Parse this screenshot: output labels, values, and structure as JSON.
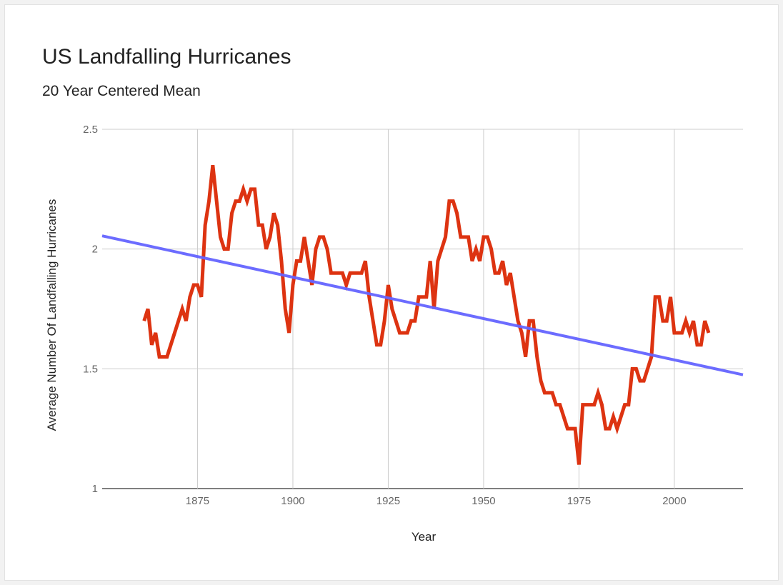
{
  "chart_data": {
    "type": "line",
    "title": "US Landfalling Hurricanes",
    "subtitle": "20 Year Centered Mean",
    "xlabel": "Year",
    "ylabel": "Average Number Of Landfalling Hurricanes",
    "xlim": [
      1850,
      2018
    ],
    "ylim": [
      1,
      2.5
    ],
    "x_ticks": [
      1875,
      1900,
      1925,
      1950,
      1975,
      2000
    ],
    "y_ticks": [
      1,
      1.5,
      2,
      2.5
    ],
    "x_tick_labels": [
      "1875",
      "1900",
      "1925",
      "1950",
      "1975",
      "2000"
    ],
    "y_tick_labels": [
      "1",
      "1.5",
      "2",
      "2.5"
    ],
    "grid": true,
    "legend": "none",
    "series": [
      {
        "color": "#dd3311",
        "points": [
          [
            1861,
            1.7
          ],
          [
            1862,
            1.75
          ],
          [
            1863,
            1.6
          ],
          [
            1864,
            1.65
          ],
          [
            1865,
            1.55
          ],
          [
            1866,
            1.55
          ],
          [
            1867,
            1.55
          ],
          [
            1868,
            1.6
          ],
          [
            1869,
            1.65
          ],
          [
            1870,
            1.7
          ],
          [
            1871,
            1.75
          ],
          [
            1872,
            1.7
          ],
          [
            1873,
            1.8
          ],
          [
            1874,
            1.85
          ],
          [
            1875,
            1.85
          ],
          [
            1876,
            1.8
          ],
          [
            1877,
            2.1
          ],
          [
            1878,
            2.2
          ],
          [
            1879,
            2.35
          ],
          [
            1880,
            2.2
          ],
          [
            1881,
            2.05
          ],
          [
            1882,
            2.0
          ],
          [
            1883,
            2.0
          ],
          [
            1884,
            2.15
          ],
          [
            1885,
            2.2
          ],
          [
            1886,
            2.2
          ],
          [
            1887,
            2.25
          ],
          [
            1888,
            2.2
          ],
          [
            1889,
            2.25
          ],
          [
            1890,
            2.25
          ],
          [
            1891,
            2.1
          ],
          [
            1892,
            2.1
          ],
          [
            1893,
            2.0
          ],
          [
            1894,
            2.05
          ],
          [
            1895,
            2.15
          ],
          [
            1896,
            2.1
          ],
          [
            1897,
            1.95
          ],
          [
            1898,
            1.75
          ],
          [
            1899,
            1.65
          ],
          [
            1900,
            1.85
          ],
          [
            1901,
            1.95
          ],
          [
            1902,
            1.95
          ],
          [
            1903,
            2.05
          ],
          [
            1904,
            1.95
          ],
          [
            1905,
            1.85
          ],
          [
            1906,
            2.0
          ],
          [
            1907,
            2.05
          ],
          [
            1908,
            2.05
          ],
          [
            1909,
            2.0
          ],
          [
            1910,
            1.9
          ],
          [
            1911,
            1.9
          ],
          [
            1912,
            1.9
          ],
          [
            1913,
            1.9
          ],
          [
            1914,
            1.85
          ],
          [
            1915,
            1.9
          ],
          [
            1916,
            1.9
          ],
          [
            1917,
            1.9
          ],
          [
            1918,
            1.9
          ],
          [
            1919,
            1.95
          ],
          [
            1920,
            1.8
          ],
          [
            1921,
            1.7
          ],
          [
            1922,
            1.6
          ],
          [
            1923,
            1.6
          ],
          [
            1924,
            1.7
          ],
          [
            1925,
            1.85
          ],
          [
            1926,
            1.75
          ],
          [
            1927,
            1.7
          ],
          [
            1928,
            1.65
          ],
          [
            1929,
            1.65
          ],
          [
            1930,
            1.65
          ],
          [
            1931,
            1.7
          ],
          [
            1932,
            1.7
          ],
          [
            1933,
            1.8
          ],
          [
            1934,
            1.8
          ],
          [
            1935,
            1.8
          ],
          [
            1936,
            1.95
          ],
          [
            1937,
            1.75
          ],
          [
            1938,
            1.95
          ],
          [
            1939,
            2.0
          ],
          [
            1940,
            2.05
          ],
          [
            1941,
            2.2
          ],
          [
            1942,
            2.2
          ],
          [
            1943,
            2.15
          ],
          [
            1944,
            2.05
          ],
          [
            1945,
            2.05
          ],
          [
            1946,
            2.05
          ],
          [
            1947,
            1.95
          ],
          [
            1948,
            2.0
          ],
          [
            1949,
            1.95
          ],
          [
            1950,
            2.05
          ],
          [
            1951,
            2.05
          ],
          [
            1952,
            2.0
          ],
          [
            1953,
            1.9
          ],
          [
            1954,
            1.9
          ],
          [
            1955,
            1.95
          ],
          [
            1956,
            1.85
          ],
          [
            1957,
            1.9
          ],
          [
            1958,
            1.8
          ],
          [
            1959,
            1.7
          ],
          [
            1960,
            1.65
          ],
          [
            1961,
            1.55
          ],
          [
            1962,
            1.7
          ],
          [
            1963,
            1.7
          ],
          [
            1964,
            1.55
          ],
          [
            1965,
            1.45
          ],
          [
            1966,
            1.4
          ],
          [
            1967,
            1.4
          ],
          [
            1968,
            1.4
          ],
          [
            1969,
            1.35
          ],
          [
            1970,
            1.35
          ],
          [
            1971,
            1.3
          ],
          [
            1972,
            1.25
          ],
          [
            1973,
            1.25
          ],
          [
            1974,
            1.25
          ],
          [
            1975,
            1.1
          ],
          [
            1976,
            1.35
          ],
          [
            1977,
            1.35
          ],
          [
            1978,
            1.35
          ],
          [
            1979,
            1.35
          ],
          [
            1980,
            1.4
          ],
          [
            1981,
            1.35
          ],
          [
            1982,
            1.25
          ],
          [
            1983,
            1.25
          ],
          [
            1984,
            1.3
          ],
          [
            1985,
            1.25
          ],
          [
            1986,
            1.3
          ],
          [
            1987,
            1.35
          ],
          [
            1988,
            1.35
          ],
          [
            1989,
            1.5
          ],
          [
            1990,
            1.5
          ],
          [
            1991,
            1.45
          ],
          [
            1992,
            1.45
          ],
          [
            1993,
            1.5
          ],
          [
            1994,
            1.55
          ],
          [
            1995,
            1.8
          ],
          [
            1996,
            1.8
          ],
          [
            1997,
            1.7
          ],
          [
            1998,
            1.7
          ],
          [
            1999,
            1.8
          ],
          [
            2000,
            1.65
          ],
          [
            2001,
            1.65
          ],
          [
            2002,
            1.65
          ],
          [
            2003,
            1.7
          ],
          [
            2004,
            1.65
          ],
          [
            2005,
            1.7
          ],
          [
            2006,
            1.6
          ],
          [
            2007,
            1.6
          ],
          [
            2008,
            1.7
          ],
          [
            2009,
            1.65
          ]
        ]
      },
      {
        "type": "trendline",
        "color": "#6464ff",
        "points": [
          [
            1850,
            2.055
          ],
          [
            2018,
            1.475
          ]
        ]
      }
    ]
  }
}
